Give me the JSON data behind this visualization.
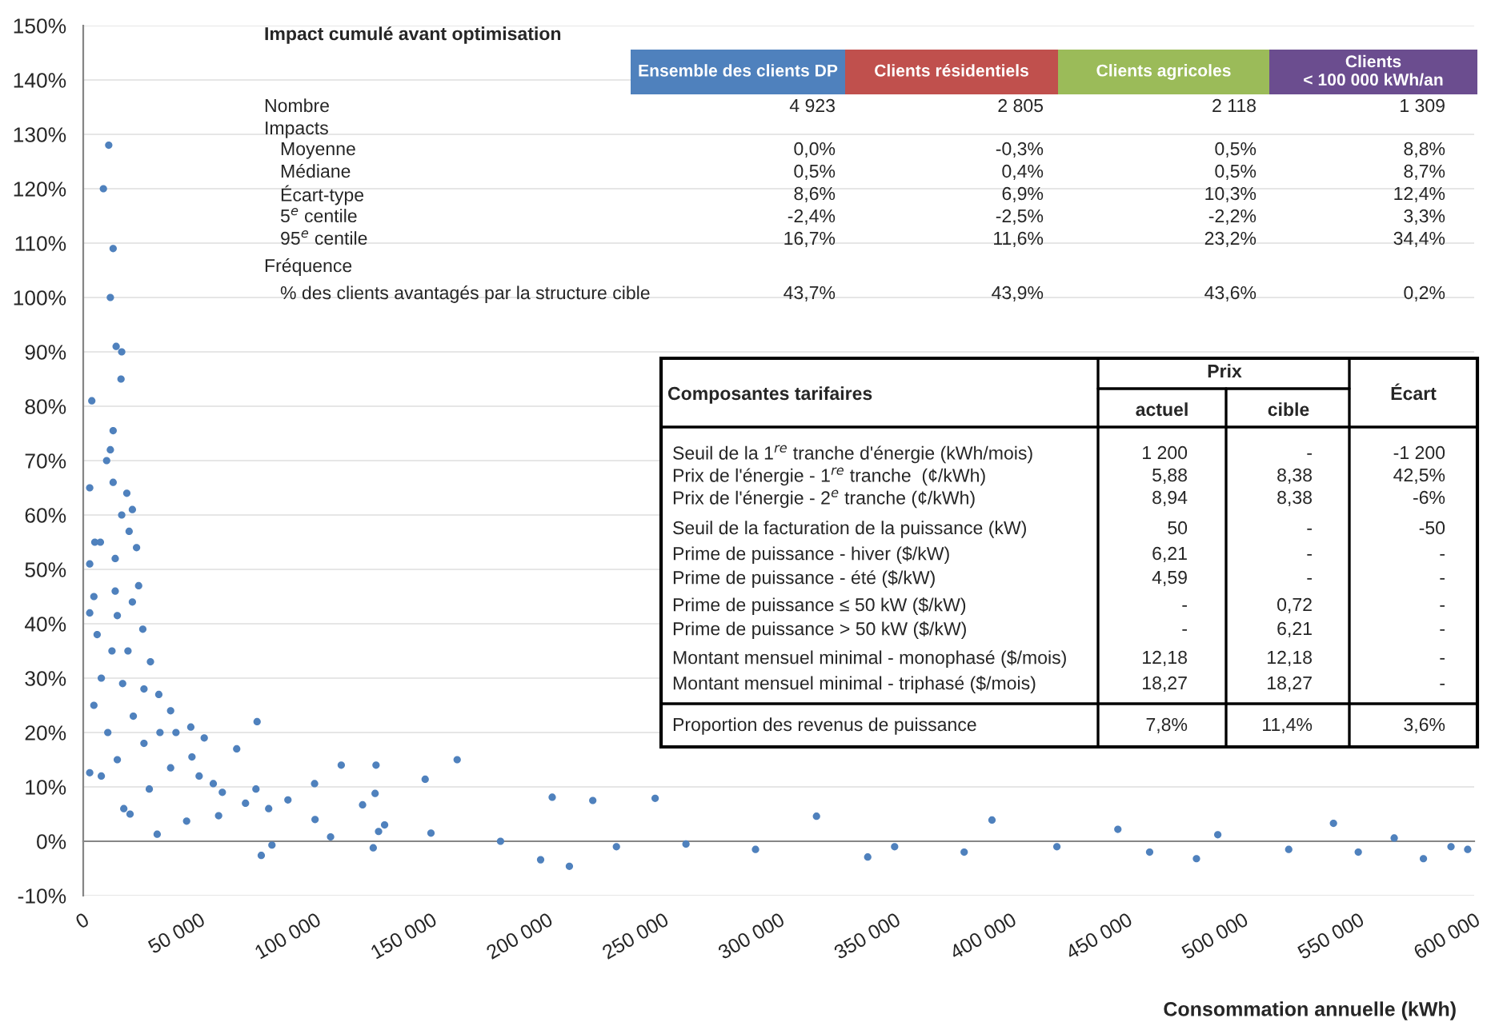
{
  "chart_data": {
    "type": "scatter",
    "xlabel": "Consommation annuelle (kWh)",
    "x": [
      11000,
      8700,
      12900,
      11700,
      14200,
      16600,
      16300,
      3700,
      12900,
      11700,
      10100,
      2800,
      12900,
      18800,
      16600,
      21200,
      5000,
      7400,
      19800,
      2800,
      13800,
      23000,
      4600,
      13800,
      21200,
      23900,
      2800,
      6000,
      14700,
      25700,
      7800,
      12400,
      19300,
      29000,
      4600,
      17000,
      26200,
      32600,
      10600,
      21600,
      37700,
      2800,
      7800,
      14700,
      26200,
      33100,
      46400,
      17500,
      20200,
      31900,
      28500,
      37700,
      52200,
      75000,
      66200,
      58400,
      44600,
      46900,
      56100,
      76800,
      81400,
      74500,
      88300,
      111300,
      126300,
      99800,
      120500,
      106700,
      127400,
      125100,
      40000,
      50000,
      60000,
      70000,
      80000,
      100000,
      130000,
      161300,
      147500,
      125900,
      202300,
      219800,
      246700,
      316300,
      392000,
      539300,
      489400,
      446300,
      565500,
      197300,
      209700,
      338400,
      578100,
      480200,
      597200,
      150000,
      180000,
      230000,
      260000,
      290000,
      350000,
      380000,
      420000,
      460000,
      520000,
      550000,
      590000
    ],
    "series": [
      {
        "color": "#4f81bd",
        "values": [
          128,
          120,
          109,
          100,
          91,
          90,
          85,
          81,
          75.5,
          72,
          70,
          65,
          66,
          64,
          60,
          61,
          55,
          55,
          57,
          51,
          52,
          54,
          45,
          46,
          44,
          47,
          42,
          38,
          41.5,
          39,
          30,
          35,
          35,
          33,
          25,
          29,
          28,
          27,
          20,
          23,
          24,
          12.6,
          12,
          15,
          18,
          20,
          21,
          6,
          5,
          1.3,
          9.6,
          13.5,
          19,
          22,
          17,
          4.7,
          3.7,
          15.5,
          10.6,
          -2.6,
          -0.7,
          9.6,
          7.6,
          14,
          14,
          10.6,
          6.7,
          0.8,
          1.8,
          -1.2,
          20,
          12,
          9,
          7,
          6,
          4,
          3,
          15,
          11.4,
          8.8,
          8.1,
          7.5,
          7.9,
          4.6,
          3.9,
          3.3,
          1.2,
          2.2,
          0.6,
          -3.4,
          -4.6,
          -2.9,
          -3.2,
          -3.2,
          -1.5,
          1.5,
          0,
          -1,
          -0.5,
          -1.5,
          -1,
          -2,
          -1,
          -2,
          -1.5,
          -2,
          -1
        ]
      }
    ],
    "marker": "circle",
    "xlim": [
      0,
      600000
    ],
    "xticks": [
      0,
      {
        "value": 50000,
        "label": "50 000"
      },
      {
        "value": 100000,
        "label": "100 000"
      },
      {
        "value": 150000,
        "label": "150 000"
      },
      {
        "value": 200000,
        "label": "200 000"
      },
      {
        "value": 250000,
        "label": "250 000"
      },
      {
        "value": 300000,
        "label": "300 000"
      },
      {
        "value": 350000,
        "label": "350 000"
      },
      {
        "value": 400000,
        "label": "400 000"
      },
      {
        "value": 450000,
        "label": "450 000"
      },
      {
        "value": 500000,
        "label": "500 000"
      },
      {
        "value": 550000,
        "label": "550 000"
      },
      {
        "value": 600000,
        "label": "600 000"
      }
    ],
    "ylim": [
      -10,
      150
    ],
    "yticks": [
      {
        "value": -10,
        "label": "-10%"
      },
      {
        "value": 0,
        "label": "0%"
      },
      {
        "value": 10,
        "label": "10%"
      },
      {
        "value": 20,
        "label": "20%"
      },
      {
        "value": 30,
        "label": "30%"
      },
      {
        "value": 40,
        "label": "40%"
      },
      {
        "value": 50,
        "label": "50%"
      },
      {
        "value": 60,
        "label": "60%"
      },
      {
        "value": 70,
        "label": "70%"
      },
      {
        "value": 80,
        "label": "80%"
      },
      {
        "value": 90,
        "label": "90%"
      },
      {
        "value": 100,
        "label": "100%"
      },
      {
        "value": 110,
        "label": "110%"
      },
      {
        "value": 120,
        "label": "120%"
      },
      {
        "value": 130,
        "label": "130%"
      },
      {
        "value": 140,
        "label": "140%"
      },
      {
        "value": 150,
        "label": "150%"
      }
    ],
    "grid": "y",
    "annotations": [
      "Impact cumulé avant optimisation",
      "Ensemble des clients DP\tClients résidentiels\tClients agricoles\tClients\n< 100 000 kWh/an",
      "Nombre\t4 923\t2 805\t2 118\t1 309",
      "Impacts",
      "Moyenne\t0,0%\t-0,3%\t0,5%\t8,8%",
      "Médiane\t0,5%\t0,4%\t0,5%\t8,7%",
      "Écart-type\t8,6%\t6,9%\t10,3%\t12,4%",
      "5$^{e}$ centile\t-2,4%\t-2,5%\t-2,2%\t3,3%",
      "95$^{e}$ centile\t16,7%\t11,6%\t23,2%\t34,4%",
      "Fréquence",
      "% des clients avantagés par la structure cible\t43,7%\t43,9%\t43,6%\t0,2%",
      "Composantes tarifaires\tPrix\tÉcart",
      "actuel\tcible",
      "Seuil de la 1$^{re}$ tranche d'énergie (kWh/mois)\t1 200\t-\t-1 200",
      "Prix de l'énergie - 1$^{re}$ tranche  (¢/kWh)\t5,88\t8,38\t42,5%",
      "Prix de l'énergie - 2$^{e}$ tranche (¢/kWh)\t8,94\t8,38\t-6%",
      "Seuil de la facturation de la puissance (kW)\t50\t-\t-50",
      "Prime de puissance - hiver ($/kW)\t6,21\t-\t-",
      "Prime de puissance - été ($/kW)\t4,59\t-\t-",
      "Prime de puissance ≤ 50 kW ($/kW)\t-\t0,72\t-",
      "Prime de puissance > 50 kW ($/kW)\t-\t6,21\t-",
      "Montant mensuel minimal - monophasé ($/mois)\t12,18\t12,18\t-",
      "Montant mensuel minimal - triphasé ($/mois)\t18,27\t18,27\t-",
      "Proportion des revenus de puissance\t7,8%\t11,4%\t3,6%"
    ]
  }
}
